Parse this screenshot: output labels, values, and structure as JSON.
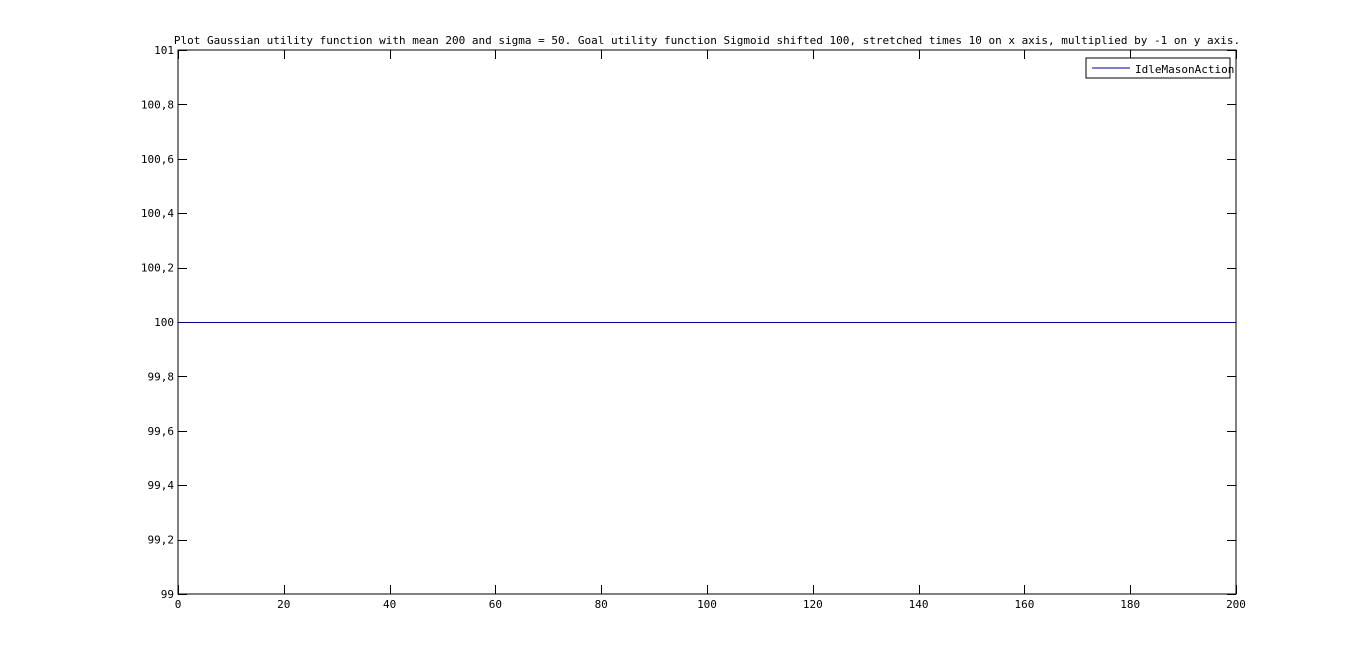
{
  "chart_data": {
    "type": "line",
    "title": "Plot Gaussian utility function with mean 200 and sigma = 50. Goal utility function Sigmoid shifted 100, stretched times 10 on x axis, multiplied by -1 on y axis.",
    "xlabel": "",
    "ylabel": "",
    "xlim": [
      0,
      200
    ],
    "ylim": [
      99,
      101
    ],
    "x_ticks": [
      0,
      20,
      40,
      60,
      80,
      100,
      120,
      140,
      160,
      180,
      200
    ],
    "y_ticks": [
      99,
      99.2,
      99.4,
      99.6,
      99.8,
      100,
      100.2,
      100.4,
      100.6,
      100.8,
      101
    ],
    "x_tick_labels": [
      "0",
      "20",
      "40",
      "60",
      "80",
      "100",
      "120",
      "140",
      "160",
      "180",
      "200"
    ],
    "y_tick_labels": [
      "99",
      "99,2",
      "99,4",
      "99,6",
      "99,8",
      "100",
      "100,2",
      "100,4",
      "100,6",
      "100,8",
      "101"
    ],
    "grid": false,
    "legend_position": "top-right",
    "series": [
      {
        "name": "IdleMasonAction",
        "color": "#00008b",
        "x": [
          0,
          200
        ],
        "y": [
          100,
          100
        ]
      }
    ]
  }
}
